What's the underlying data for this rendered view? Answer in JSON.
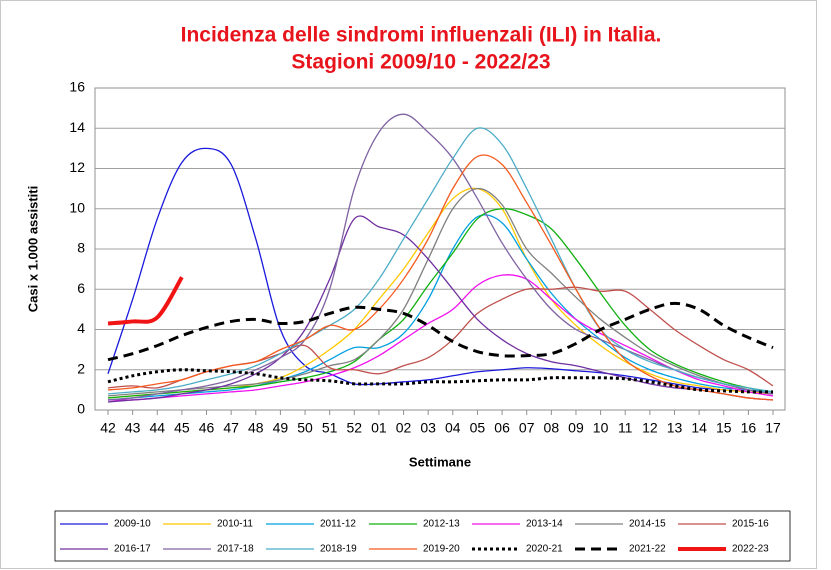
{
  "chart_data": {
    "type": "line",
    "title": "Incidenza delle sindromi influenzali (ILI) in Italia.",
    "subtitle": "Stagioni 2009/10 - 2022/23",
    "y_label": "Casi x 1.000 assistiti",
    "x_label": "Settimane",
    "categories": [
      "42",
      "43",
      "44",
      "45",
      "46",
      "47",
      "48",
      "49",
      "50",
      "51",
      "52",
      "01",
      "02",
      "03",
      "04",
      "05",
      "06",
      "07",
      "08",
      "09",
      "10",
      "11",
      "12",
      "13",
      "14",
      "15",
      "16",
      "17"
    ],
    "ylim": [
      0,
      16
    ],
    "yticks": [
      0,
      2,
      4,
      6,
      8,
      10,
      12,
      14,
      16
    ],
    "grid": true,
    "series": [
      {
        "name": "2009-10",
        "color": "#1a1adc",
        "values": [
          1.8,
          5.5,
          9.5,
          12.3,
          13.0,
          12.2,
          8.5,
          4.0,
          2.2,
          1.8,
          1.3,
          1.3,
          1.4,
          1.5,
          1.7,
          1.9,
          2.0,
          2.1,
          2.05,
          1.95,
          1.85,
          1.7,
          1.5,
          1.3,
          1.1,
          1.0,
          0.9,
          0.8
        ]
      },
      {
        "name": "2010-11",
        "color": "#ffc800",
        "values": [
          0.6,
          0.7,
          0.8,
          0.9,
          1.0,
          1.1,
          1.3,
          1.6,
          2.2,
          3.0,
          4.0,
          5.5,
          7.0,
          8.8,
          10.5,
          11.0,
          10.0,
          7.5,
          5.5,
          4.2,
          3.2,
          2.4,
          1.8,
          1.4,
          1.2,
          1.0,
          0.9,
          0.8
        ]
      },
      {
        "name": "2011-12",
        "color": "#00a0e0",
        "values": [
          0.5,
          0.6,
          0.7,
          0.8,
          0.9,
          1.0,
          1.2,
          1.5,
          1.9,
          2.5,
          3.1,
          3.1,
          3.8,
          5.5,
          8.0,
          9.6,
          9.3,
          7.5,
          5.8,
          4.5,
          3.5,
          2.6,
          2.0,
          1.6,
          1.3,
          1.1,
          1.0,
          0.9
        ]
      },
      {
        "name": "2012-13",
        "color": "#10b010",
        "values": [
          0.6,
          0.7,
          0.8,
          0.9,
          1.0,
          1.1,
          1.2,
          1.4,
          1.6,
          1.9,
          2.4,
          3.5,
          4.5,
          6.2,
          7.8,
          9.5,
          10.0,
          9.7,
          9.0,
          7.5,
          5.8,
          4.2,
          3.0,
          2.3,
          1.8,
          1.4,
          1.1,
          0.9
        ]
      },
      {
        "name": "2013-14",
        "color": "#f010f0",
        "values": [
          0.5,
          0.5,
          0.6,
          0.7,
          0.8,
          0.9,
          1.0,
          1.2,
          1.4,
          1.7,
          2.1,
          2.7,
          3.5,
          4.3,
          5.0,
          6.2,
          6.7,
          6.5,
          5.5,
          4.5,
          3.8,
          3.2,
          2.6,
          2.0,
          1.5,
          1.2,
          0.9,
          0.7
        ]
      },
      {
        "name": "2014-15",
        "color": "#808080",
        "values": [
          0.7,
          0.8,
          0.9,
          1.0,
          1.1,
          1.2,
          1.3,
          1.5,
          1.8,
          2.2,
          2.5,
          3.5,
          5.0,
          7.5,
          10.0,
          11.0,
          10.2,
          8.0,
          6.8,
          5.6,
          4.5,
          3.6,
          2.8,
          2.2,
          1.7,
          1.3,
          1.0,
          0.8
        ]
      },
      {
        "name": "2015-16",
        "color": "#c0504d",
        "values": [
          1.1,
          1.2,
          1.1,
          1.5,
          1.9,
          2.2,
          2.4,
          2.8,
          3.2,
          2.1,
          2.0,
          1.8,
          2.2,
          2.6,
          3.5,
          4.8,
          5.5,
          6.0,
          6.0,
          6.1,
          5.9,
          5.9,
          5.0,
          4.0,
          3.2,
          2.5,
          2.0,
          1.2
        ]
      },
      {
        "name": "2016-17",
        "color": "#7030a0",
        "values": [
          0.4,
          0.5,
          0.6,
          0.8,
          1.0,
          1.3,
          1.8,
          2.6,
          4.0,
          6.5,
          9.5,
          9.1,
          8.7,
          7.5,
          6.0,
          4.5,
          3.5,
          2.8,
          2.4,
          2.2,
          1.9,
          1.6,
          1.3,
          1.1,
          1.0,
          0.8,
          0.6,
          0.5
        ]
      },
      {
        "name": "2017-18",
        "color": "#8064a2",
        "values": [
          0.5,
          0.6,
          0.8,
          1.0,
          1.2,
          1.5,
          2.0,
          2.6,
          3.5,
          6.0,
          11.0,
          13.8,
          14.7,
          13.8,
          12.5,
          10.5,
          8.3,
          6.5,
          5.0,
          4.0,
          3.5,
          3.0,
          2.5,
          2.0,
          1.6,
          1.3,
          1.0,
          0.8
        ]
      },
      {
        "name": "2018-19",
        "color": "#4bacc6",
        "values": [
          0.8,
          0.9,
          1.0,
          1.2,
          1.5,
          1.8,
          2.2,
          2.8,
          3.5,
          4.2,
          5.0,
          6.5,
          8.5,
          10.5,
          12.5,
          14.0,
          13.2,
          11.0,
          8.5,
          6.0,
          4.0,
          3.0,
          2.4,
          2.0,
          1.6,
          1.3,
          1.1,
          0.9
        ]
      },
      {
        "name": "2019-20",
        "color": "#f55a1e",
        "values": [
          1.0,
          1.1,
          1.3,
          1.5,
          1.9,
          2.2,
          2.4,
          3.0,
          3.5,
          4.2,
          4.0,
          5.0,
          6.5,
          8.5,
          11.0,
          12.6,
          12.2,
          10.3,
          8.2,
          6.0,
          4.0,
          2.5,
          1.7,
          1.2,
          1.0,
          0.8,
          0.6,
          0.5
        ]
      },
      {
        "name": "2020-21",
        "color": "#000000",
        "dash": "dotted",
        "width": 3,
        "values": [
          1.4,
          1.7,
          1.9,
          2.0,
          1.95,
          1.9,
          1.8,
          1.6,
          1.5,
          1.45,
          1.3,
          1.3,
          1.3,
          1.4,
          1.4,
          1.45,
          1.5,
          1.5,
          1.6,
          1.6,
          1.6,
          1.55,
          1.4,
          1.2,
          1.0,
          0.95,
          0.9,
          0.9
        ]
      },
      {
        "name": "2021-22",
        "color": "#000000",
        "dash": "dashed",
        "width": 3,
        "values": [
          2.5,
          2.8,
          3.2,
          3.7,
          4.1,
          4.4,
          4.5,
          4.3,
          4.4,
          4.8,
          5.1,
          5.0,
          4.8,
          4.2,
          3.4,
          2.9,
          2.7,
          2.7,
          2.8,
          3.3,
          4.0,
          4.5,
          5.0,
          5.3,
          5.0,
          4.2,
          3.6,
          3.1
        ]
      },
      {
        "name": "2022-23",
        "color": "#f01414",
        "width": 4,
        "values": [
          4.3,
          4.4,
          4.6,
          6.6,
          null,
          null,
          null,
          null,
          null,
          null,
          null,
          null,
          null,
          null,
          null,
          null,
          null,
          null,
          null,
          null,
          null,
          null,
          null,
          null,
          null,
          null,
          null,
          null
        ]
      }
    ]
  }
}
